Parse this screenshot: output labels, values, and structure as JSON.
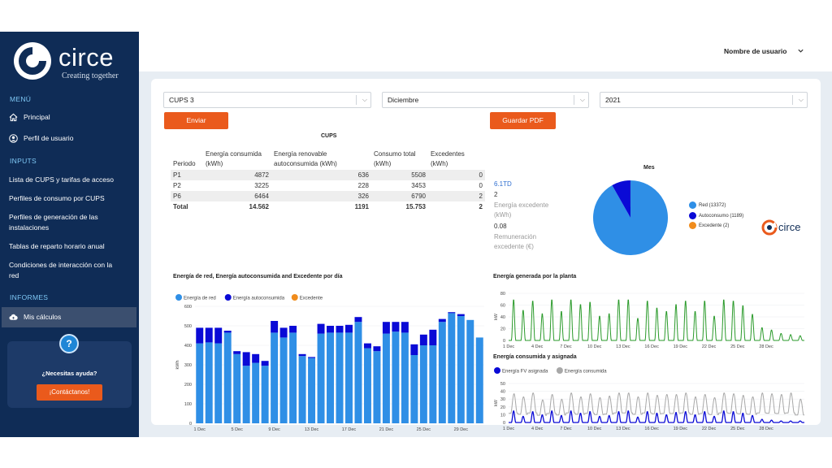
{
  "brand": {
    "name": "circe",
    "tagline": "Creating together",
    "accent": "#ea5a1c",
    "sidebar_bg": "#0f2c56"
  },
  "header": {
    "user_label": "Nombre de usuario"
  },
  "sidebar": {
    "menu_title": "MENÚ",
    "menu": [
      {
        "label": "Principal",
        "icon": "home-icon"
      },
      {
        "label": "Perfil de usuario",
        "icon": "user-icon"
      }
    ],
    "inputs_title": "INPUTS",
    "inputs": [
      "Lista de CUPS y tarifas de acceso",
      "Perfiles de consumo por CUPS",
      "Perfiles de generación de las instalaciones",
      "Tablas de reparto horario anual",
      "Condiciones de interacción con la red"
    ],
    "reports_title": "INFORMES",
    "reports": [
      {
        "label": "Mis cálculos",
        "icon": "cloud-calc-icon",
        "active": true
      }
    ],
    "help": {
      "question": "¿Necesitas ayuda?",
      "button": "¡Contáctanos!",
      "icon": "question-icon"
    }
  },
  "filters": {
    "cups": "CUPS 3",
    "month": "Diciembre",
    "year": "2021",
    "send_button": "Enviar",
    "pdf_button": "Guardar PDF"
  },
  "cups_table": {
    "title": "CUPS",
    "headers": [
      "Periodo",
      "Energía consumida (kWh)",
      "Energía renovable autoconsumida (kWh)",
      "Consumo total (kWh)",
      "Excedentes (kWh)"
    ],
    "rows": [
      [
        "P1",
        "4872",
        "636",
        "5508",
        "0"
      ],
      [
        "P2",
        "3225",
        "228",
        "3453",
        "0"
      ],
      [
        "P6",
        "6464",
        "326",
        "6790",
        "2"
      ],
      [
        "Total",
        "14.562",
        "1191",
        "15.753",
        "2"
      ]
    ]
  },
  "tariff": {
    "code": "6.1TD",
    "code_value": "2",
    "surplus_label": "Energía excedente (kWh)",
    "surplus_value": "0.08",
    "remuneration_label": "Remuneración excedente (€)"
  },
  "mes_chart": {
    "title": "Mes",
    "watermark": "circe"
  },
  "daily_chart": {
    "title": "Energía de red, Energía autoconsumida and Excedente por día"
  },
  "plant_chart": {
    "title": "Energía generada por la planta"
  },
  "assigned_chart": {
    "title": "Energía consumida y asignada"
  },
  "chart_data": [
    {
      "type": "pie",
      "title": "Mes",
      "labels": [
        "Red (13372)",
        "Autoconsumo (1189)",
        "Excedente (2)"
      ],
      "values": [
        13372,
        1189,
        2
      ],
      "colors": [
        "#2f8fe6",
        "#0a0ad6",
        "#f08c1c"
      ],
      "legend": "right"
    },
    {
      "type": "bar",
      "stacked": true,
      "title": "Energía de red, Energía autoconsumida and Excedente por día",
      "categories": [
        "1 Dec",
        "2 Dec",
        "3 Dec",
        "4 Dec",
        "5 Dec",
        "6 Dec",
        "7 Dec",
        "8 Dec",
        "9 Dec",
        "10 Dec",
        "11 Dec",
        "12 Dec",
        "13 Dec",
        "14 Dec",
        "15 Dec",
        "16 Dec",
        "17 Dec",
        "18 Dec",
        "19 Dec",
        "20 Dec",
        "21 Dec",
        "22 Dec",
        "23 Dec",
        "24 Dec",
        "25 Dec",
        "26 Dec",
        "27 Dec",
        "28 Dec",
        "29 Dec",
        "30 Dec",
        "31 Dec"
      ],
      "xticks": [
        "1 Dec",
        "5 Dec",
        "9 Dec",
        "13 Dec",
        "17 Dec",
        "21 Dec",
        "25 Dec",
        "29 Dec"
      ],
      "ylabel": "kWh",
      "ylim": [
        0,
        600
      ],
      "yticks": [
        0,
        100,
        200,
        300,
        400,
        500,
        600
      ],
      "legend": "top-left",
      "series": [
        {
          "name": "Energía de red",
          "color": "#2f8fe6",
          "values": [
            410,
            415,
            410,
            465,
            355,
            295,
            310,
            295,
            465,
            440,
            465,
            345,
            335,
            460,
            465,
            465,
            465,
            520,
            385,
            370,
            460,
            470,
            465,
            350,
            400,
            400,
            520,
            565,
            550,
            530,
            440
          ]
        },
        {
          "name": "Energía autoconsumida",
          "color": "#0a0ad6",
          "values": [
            80,
            75,
            80,
            10,
            15,
            70,
            45,
            25,
            60,
            50,
            35,
            10,
            5,
            50,
            35,
            35,
            40,
            25,
            25,
            25,
            60,
            50,
            55,
            55,
            55,
            80,
            15,
            5,
            10,
            0,
            0
          ]
        },
        {
          "name": "Excedente",
          "color": "#f08c1c",
          "values": [
            0,
            0,
            0,
            0,
            0,
            0,
            0,
            0,
            0,
            0,
            0,
            0,
            0,
            0,
            0,
            0,
            0,
            0,
            0,
            0,
            0,
            0,
            0,
            0,
            0,
            0,
            0,
            0,
            0,
            0,
            0
          ]
        }
      ]
    },
    {
      "type": "line",
      "title": "Energía generada por la planta",
      "ylabel": "kW",
      "ylim": [
        0,
        80
      ],
      "yticks": [
        0,
        20,
        40,
        60,
        80
      ],
      "xticks": [
        "1 Dec",
        "4 Dec",
        "7 Dec",
        "10 Dec",
        "13 Dec",
        "16 Dec",
        "19 Dec",
        "22 Dec",
        "25 Dec",
        "28 Dec"
      ],
      "daily_peaks_kw": [
        70,
        52,
        68,
        46,
        70,
        50,
        70,
        62,
        66,
        42,
        46,
        70,
        70,
        38,
        68,
        56,
        50,
        62,
        68,
        50,
        68,
        42,
        70,
        68,
        60,
        45,
        22,
        18,
        12,
        10,
        8
      ],
      "color": "#2a9a2a"
    },
    {
      "type": "line",
      "title": "Energía consumida y asignada",
      "ylabel": "kW",
      "ylim": [
        0,
        50
      ],
      "yticks": [
        0,
        10,
        20,
        30,
        40,
        50
      ],
      "xticks": [
        "1 Dec",
        "4 Dec",
        "7 Dec",
        "10 Dec",
        "13 Dec",
        "16 Dec",
        "19 Dec",
        "22 Dec",
        "25 Dec",
        "28 Dec"
      ],
      "legend": "top-left",
      "series": [
        {
          "name": "Energía FV asignada",
          "color": "#0a0ad6",
          "daily_peaks_kw": [
            15,
            8,
            14,
            10,
            15,
            9,
            15,
            12,
            14,
            8,
            9,
            14,
            15,
            7,
            14,
            12,
            10,
            13,
            14,
            10,
            14,
            8,
            15,
            14,
            12,
            9,
            4,
            3,
            2,
            2,
            2
          ]
        },
        {
          "name": "Energía consumida",
          "color": "#a8a8a8",
          "daily_peaks_kw": [
            37,
            33,
            38,
            29,
            36,
            30,
            38,
            33,
            37,
            32,
            34,
            38,
            38,
            33,
            38,
            35,
            36,
            36,
            38,
            33,
            36,
            32,
            38,
            37,
            35,
            33,
            38,
            37,
            36,
            38,
            30
          ]
        }
      ]
    }
  ]
}
